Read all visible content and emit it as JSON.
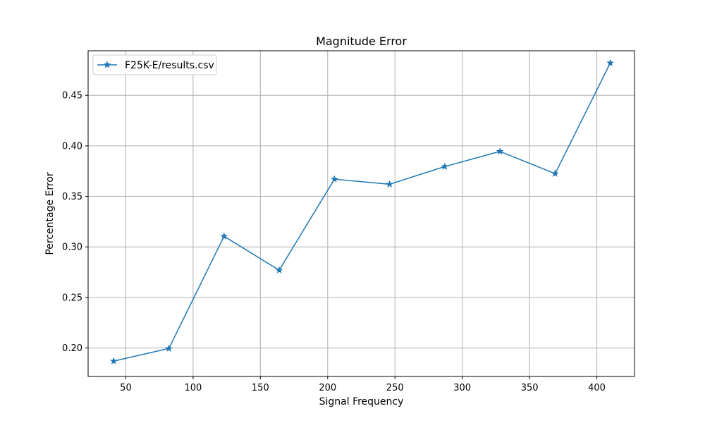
{
  "chart_data": {
    "type": "line",
    "title": "Magnitude Error",
    "xlabel": "Signal Frequency",
    "ylabel": "Percentage Error",
    "xlim": [
      22,
      428
    ],
    "ylim": [
      0.1718,
      0.4941
    ],
    "xticks": [
      50,
      100,
      150,
      200,
      250,
      300,
      350,
      400
    ],
    "yticks": [
      0.2,
      0.25,
      0.3,
      0.35,
      0.4,
      0.45
    ],
    "grid": true,
    "legend_position": "top-left",
    "series": [
      {
        "name": "F25K-E/results.csv",
        "color": "#1f77b4",
        "marker": "star",
        "x": [
          41,
          82,
          123,
          164,
          205,
          246,
          287,
          328,
          369,
          410
        ],
        "y": [
          0.187,
          0.1995,
          0.3105,
          0.277,
          0.367,
          0.362,
          0.3795,
          0.3945,
          0.3725,
          0.482
        ]
      }
    ]
  }
}
